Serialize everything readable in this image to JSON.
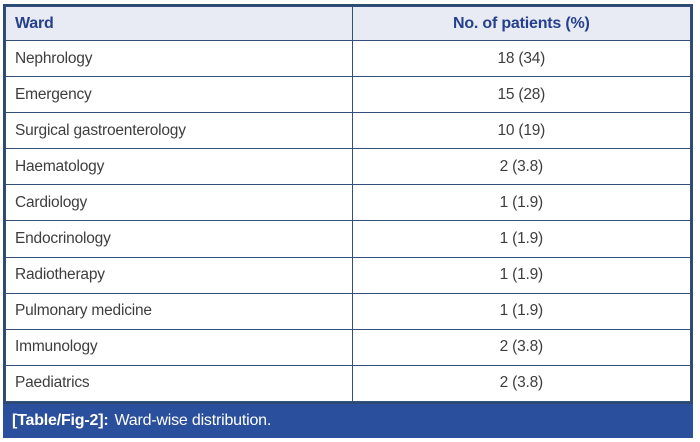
{
  "table": {
    "columns": [
      {
        "label": "Ward"
      },
      {
        "label": "No. of patients (%)"
      }
    ],
    "rows": [
      {
        "ward": "Nephrology",
        "patients": "18 (34)"
      },
      {
        "ward": "Emergency",
        "patients": "15 (28)"
      },
      {
        "ward": "Surgical gastroenterology",
        "patients": "10 (19)"
      },
      {
        "ward": "Haematology",
        "patients": "2 (3.8)"
      },
      {
        "ward": "Cardiology",
        "patients": "1 (1.9)"
      },
      {
        "ward": "Endocrinology",
        "patients": "1 (1.9)"
      },
      {
        "ward": "Radiotherapy",
        "patients": "1 (1.9)"
      },
      {
        "ward": "Pulmonary medicine",
        "patients": "1 (1.9)"
      },
      {
        "ward": "Immunology",
        "patients": "2 (3.8)"
      },
      {
        "ward": "Paediatrics",
        "patients": "2 (3.8)"
      }
    ],
    "caption": {
      "tag": "[Table/Fig-2]:",
      "text": "Ward-wise distribution."
    }
  },
  "colors": {
    "header_bg": "#e8eaf4",
    "header_text": "#26418c",
    "border": "#2c4a72",
    "body_text": "#3e3e3e",
    "caption_bg": "#2a4f9c",
    "caption_text": "#ffffff"
  }
}
